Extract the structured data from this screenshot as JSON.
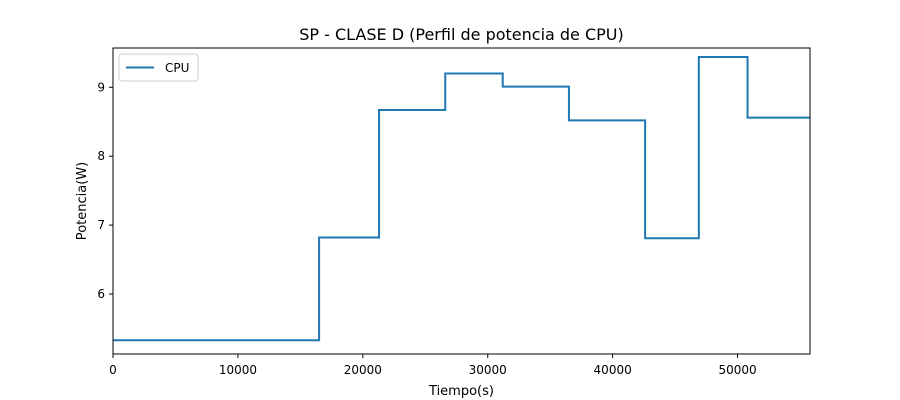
{
  "chart_data": {
    "type": "line",
    "title": "SP - CLASE D (Perfil de potencia de CPU)",
    "xlabel": "Tiempo(s)",
    "ylabel": "Potencia(W)",
    "xlim": [
      0,
      55800
    ],
    "ylim": [
      5.13,
      9.57
    ],
    "x_ticks": [
      0,
      10000,
      20000,
      30000,
      40000,
      50000
    ],
    "y_ticks": [
      6,
      7,
      8,
      9
    ],
    "grid": false,
    "legend_position": "top-left",
    "step": true,
    "series": [
      {
        "name": "CPU",
        "color": "#1f77b4",
        "x": [
          0,
          16500,
          21300,
          26600,
          31200,
          36500,
          42600,
          46900,
          50800,
          55800
        ],
        "y": [
          5.33,
          6.82,
          8.67,
          9.2,
          9.01,
          8.52,
          6.81,
          9.44,
          8.56,
          8.56
        ]
      }
    ]
  }
}
